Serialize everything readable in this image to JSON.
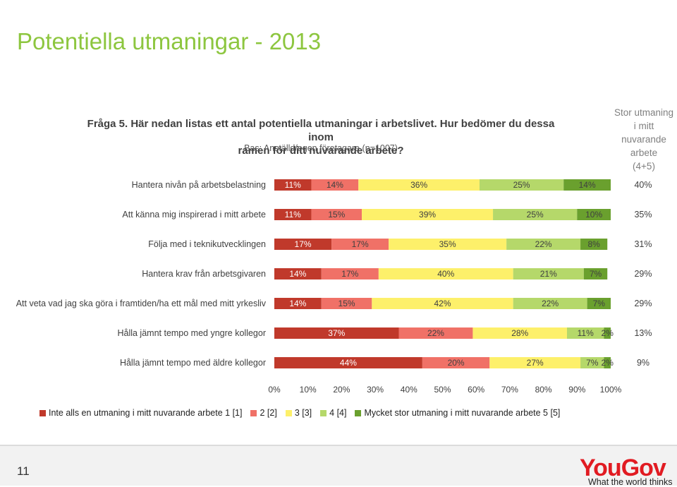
{
  "slide": {
    "title": "Potentiella utmaningar - 2013",
    "question_line1": "Fråga 5. Här nedan listas ett antal potentiella utmaningar i arbetslivet. Hur bedömer du dessa inom",
    "question_line2": "ramen för ditt nuvarande arbete?",
    "base": "Bas: Anställd/egen företagare (n=1007)",
    "right_column_title": [
      "Stor utmaning",
      "i mitt",
      "nuvarande",
      "arbete",
      "(4+5)"
    ],
    "page_number": "11",
    "logo": "YouGov",
    "tagline": "What the world thinks"
  },
  "chart_data": {
    "type": "bar",
    "orientation": "horizontal",
    "stacked": true,
    "categories": [
      "Hantera nivån på arbetsbelastning",
      "Att känna mig inspirerad i mitt arbete",
      "Följa med i teknikutvecklingen",
      "Hantera krav från arbetsgivaren",
      "Att veta vad jag ska göra i framtiden/ha ett mål med mitt yrkesliv",
      "Hålla jämnt tempo med yngre kollegor",
      "Hålla jämnt tempo med äldre kollegor"
    ],
    "series": [
      {
        "name": "Inte alls en utmaning i mitt nuvarande arbete 1 [1]",
        "color": "#c0392b",
        "values": [
          11,
          11,
          17,
          14,
          14,
          37,
          44
        ]
      },
      {
        "name": "2 [2]",
        "color": "#f07167",
        "values": [
          14,
          15,
          17,
          17,
          15,
          22,
          20
        ]
      },
      {
        "name": "3 [3]",
        "color": "#fdf06a",
        "values": [
          36,
          39,
          35,
          40,
          42,
          28,
          27
        ]
      },
      {
        "name": "4 [4]",
        "color": "#b5d86a",
        "values": [
          25,
          25,
          22,
          21,
          22,
          11,
          7
        ]
      },
      {
        "name": "Mycket stor utmaning i mitt nuvarande arbete 5 [5]",
        "color": "#6aa02e",
        "values": [
          14,
          10,
          8,
          7,
          7,
          2,
          2
        ]
      }
    ],
    "right_column_values": [
      "40%",
      "35%",
      "31%",
      "29%",
      "29%",
      "13%",
      "9%"
    ],
    "x_ticks": [
      "0%",
      "10%",
      "20%",
      "30%",
      "40%",
      "50%",
      "60%",
      "70%",
      "80%",
      "90%",
      "100%"
    ],
    "xlim": [
      0,
      100
    ],
    "grid": false,
    "legend_position": "bottom"
  }
}
